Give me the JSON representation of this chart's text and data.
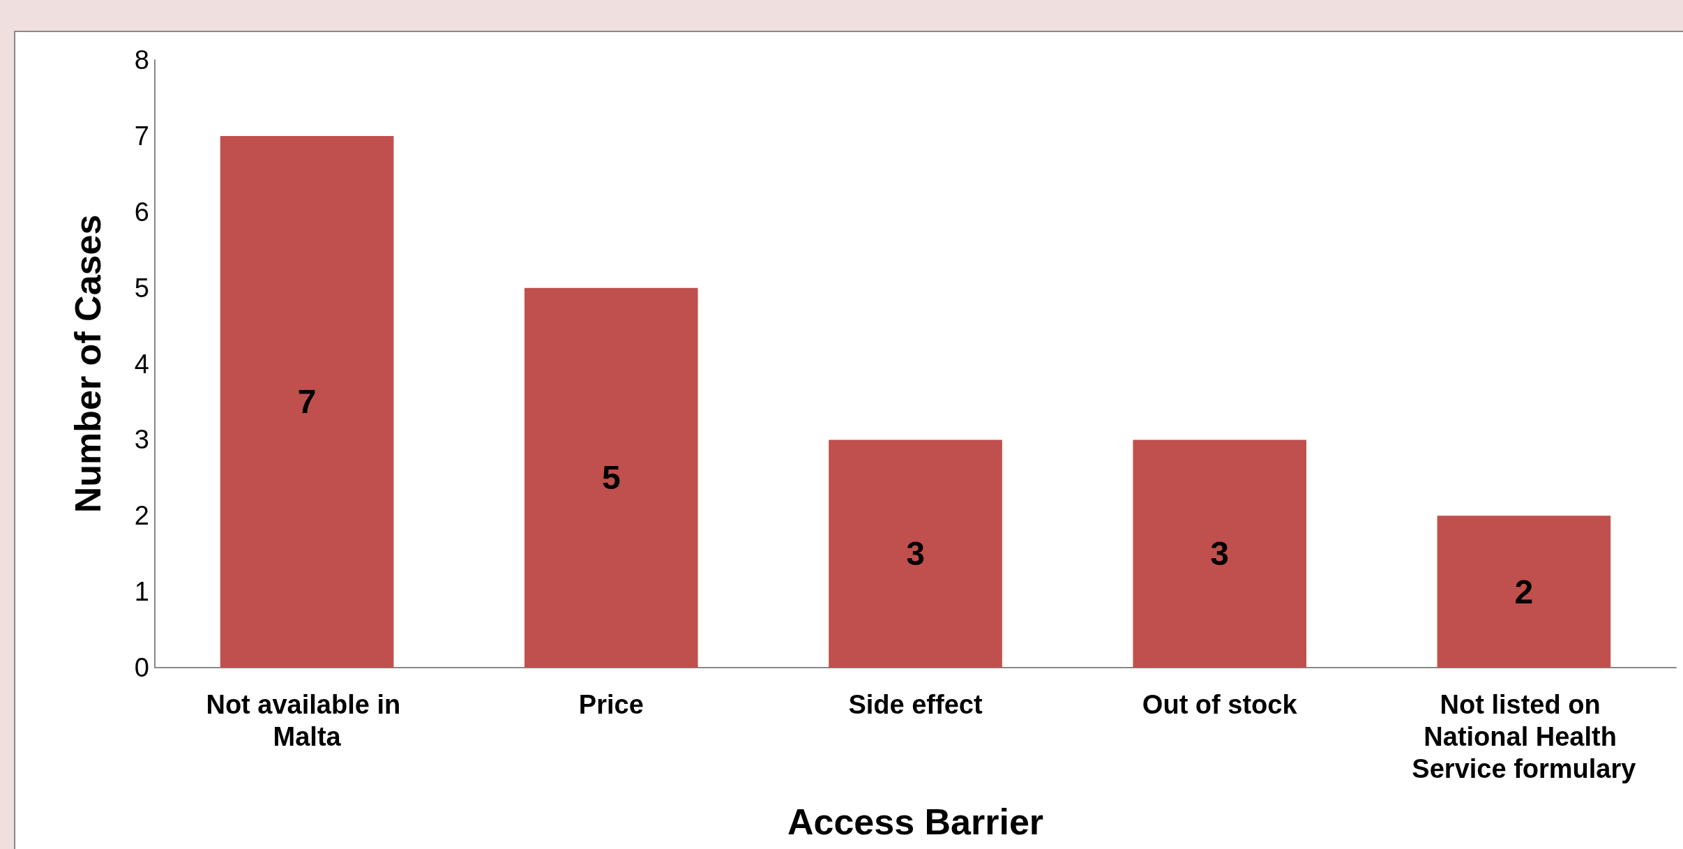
{
  "chart_data": {
    "type": "bar",
    "xlabel": "Access Barrier",
    "ylabel": "Number of Cases",
    "categories": [
      "Not available in Malta",
      "Price",
      "Side effect",
      "Out of stock",
      "Not listed on National Health Service formulary"
    ],
    "values": [
      7,
      5,
      3,
      3,
      2
    ],
    "color": "#c0504d",
    "ylim": [
      0,
      8
    ],
    "yticks": [
      0,
      1,
      2,
      3,
      4,
      5,
      6,
      7,
      8
    ],
    "grid": false,
    "data_labels": true
  }
}
